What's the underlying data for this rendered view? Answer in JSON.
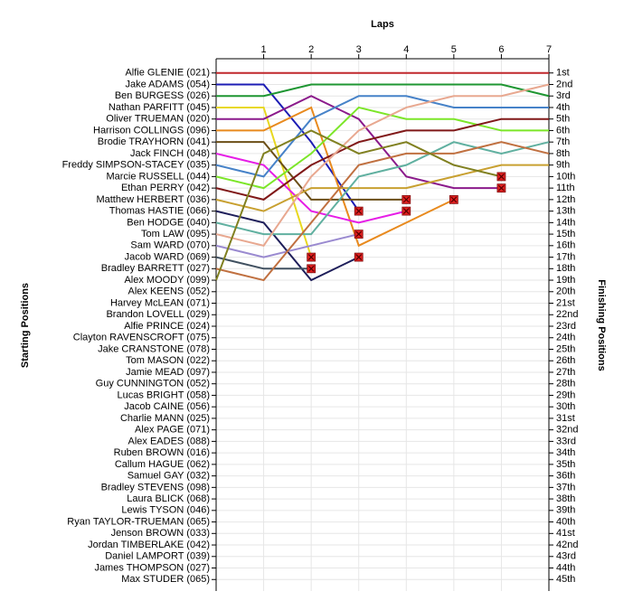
{
  "chart_data": {
    "type": "line",
    "x_label": "Laps",
    "y_label": "Starting Positions",
    "y2_label": "Finishing Positions",
    "x": [
      0,
      1,
      2,
      3,
      4,
      5,
      6,
      7
    ],
    "xlim": [
      0,
      7
    ],
    "xticks": [
      1,
      2,
      3,
      4,
      5,
      6,
      7
    ],
    "ylim": [
      46,
      0
    ],
    "y2lim": [
      46,
      0
    ],
    "grid": true,
    "yticks": [
      {
        "value": 1,
        "label": "Alfie GLENIE (021)"
      },
      {
        "value": 2,
        "label": "Jake ADAMS (054)"
      },
      {
        "value": 3,
        "label": "Ben BURGESS (026)"
      },
      {
        "value": 4,
        "label": "Nathan PARFITT (045)"
      },
      {
        "value": 5,
        "label": "Oliver TRUEMAN (020)"
      },
      {
        "value": 6,
        "label": "Harrison COLLINGS (096)"
      },
      {
        "value": 7,
        "label": "Brodie TRAYHORN (041)"
      },
      {
        "value": 8,
        "label": "Jack FINCH (048)"
      },
      {
        "value": 9,
        "label": "Freddy SIMPSON-STACEY (035)"
      },
      {
        "value": 10,
        "label": "Marcie RUSSELL (044)"
      },
      {
        "value": 11,
        "label": "Ethan PERRY (042)"
      },
      {
        "value": 12,
        "label": "Matthew HERBERT (036)"
      },
      {
        "value": 13,
        "label": "Thomas HASTIE (066)"
      },
      {
        "value": 14,
        "label": "Ben HODGE (040)"
      },
      {
        "value": 15,
        "label": "Tom LAW (095)"
      },
      {
        "value": 16,
        "label": "Sam WARD (070)"
      },
      {
        "value": 17,
        "label": "Jacob WARD (069)"
      },
      {
        "value": 18,
        "label": "Bradley BARRETT (027)"
      },
      {
        "value": 19,
        "label": "Alex MOODY (099)"
      },
      {
        "value": 20,
        "label": "Alex KEENS (052)"
      },
      {
        "value": 21,
        "label": "Harvey McLEAN (071)"
      },
      {
        "value": 22,
        "label": "Brandon LOVELL (029)"
      },
      {
        "value": 23,
        "label": "Alfie PRINCE (024)"
      },
      {
        "value": 24,
        "label": "Clayton RAVENSCROFT (075)"
      },
      {
        "value": 25,
        "label": "Jake CRANSTONE (078)"
      },
      {
        "value": 26,
        "label": "Tom MASON (022)"
      },
      {
        "value": 27,
        "label": "Jamie MEAD (097)"
      },
      {
        "value": 28,
        "label": "Guy CUNNINGTON (052)"
      },
      {
        "value": 29,
        "label": "Lucas BRIGHT (058)"
      },
      {
        "value": 30,
        "label": "Jacob CAINE (056)"
      },
      {
        "value": 31,
        "label": "Charlie MANN (025)"
      },
      {
        "value": 32,
        "label": "Alex PAGE (071)"
      },
      {
        "value": 33,
        "label": "Alex EADES (088)"
      },
      {
        "value": 34,
        "label": "Ruben BROWN (016)"
      },
      {
        "value": 35,
        "label": "Callum HAGUE (062)"
      },
      {
        "value": 36,
        "label": "Samuel GAY (032)"
      },
      {
        "value": 37,
        "label": "Bradley STEVENS (098)"
      },
      {
        "value": 38,
        "label": "Laura BLICK (068)"
      },
      {
        "value": 39,
        "label": "Lewis TYSON (046)"
      },
      {
        "value": 40,
        "label": "Ryan TAYLOR-TRUEMAN (065)"
      },
      {
        "value": 41,
        "label": "Jenson BROWN (033)"
      },
      {
        "value": 42,
        "label": "Jordan TIMBERLAKE (042)"
      },
      {
        "value": 43,
        "label": "Daniel LAMPORT (039)"
      },
      {
        "value": 44,
        "label": "James THOMPSON (027)"
      },
      {
        "value": 45,
        "label": "Max STUDER (065)"
      }
    ],
    "y2ticks": [
      {
        "value": 1,
        "label": "1st"
      },
      {
        "value": 2,
        "label": "2nd"
      },
      {
        "value": 3,
        "label": "3rd"
      },
      {
        "value": 4,
        "label": "4th"
      },
      {
        "value": 5,
        "label": "5th"
      },
      {
        "value": 6,
        "label": "6th"
      },
      {
        "value": 7,
        "label": "7th"
      },
      {
        "value": 8,
        "label": "8th"
      },
      {
        "value": 9,
        "label": "9th"
      },
      {
        "value": 10,
        "label": "10th"
      },
      {
        "value": 11,
        "label": "11th"
      },
      {
        "value": 12,
        "label": "12th"
      },
      {
        "value": 13,
        "label": "13th"
      },
      {
        "value": 14,
        "label": "14th"
      },
      {
        "value": 15,
        "label": "15th"
      },
      {
        "value": 16,
        "label": "16th"
      },
      {
        "value": 17,
        "label": "17th"
      },
      {
        "value": 18,
        "label": "18th"
      },
      {
        "value": 19,
        "label": "19th"
      },
      {
        "value": 20,
        "label": "20th"
      },
      {
        "value": 21,
        "label": "21st"
      },
      {
        "value": 22,
        "label": "22nd"
      },
      {
        "value": 23,
        "label": "23rd"
      },
      {
        "value": 24,
        "label": "24th"
      },
      {
        "value": 25,
        "label": "25th"
      },
      {
        "value": 26,
        "label": "26th"
      },
      {
        "value": 27,
        "label": "27th"
      },
      {
        "value": 28,
        "label": "28th"
      },
      {
        "value": 29,
        "label": "29th"
      },
      {
        "value": 30,
        "label": "30th"
      },
      {
        "value": 31,
        "label": "31st"
      },
      {
        "value": 32,
        "label": "32nd"
      },
      {
        "value": 33,
        "label": "33rd"
      },
      {
        "value": 34,
        "label": "34th"
      },
      {
        "value": 35,
        "label": "35th"
      },
      {
        "value": 36,
        "label": "36th"
      },
      {
        "value": 37,
        "label": "37th"
      },
      {
        "value": 38,
        "label": "38th"
      },
      {
        "value": 39,
        "label": "39th"
      },
      {
        "value": 40,
        "label": "40th"
      },
      {
        "value": 41,
        "label": "41st"
      },
      {
        "value": 42,
        "label": "42nd"
      },
      {
        "value": 43,
        "label": "43rd"
      },
      {
        "value": 44,
        "label": "44th"
      },
      {
        "value": 45,
        "label": "45th"
      }
    ],
    "series": [
      {
        "color": "#c0282d",
        "values": [
          1,
          1,
          1,
          1,
          1,
          1,
          1,
          1
        ]
      },
      {
        "color": "#1c1cb4",
        "values": [
          2,
          2,
          7,
          13,
          null,
          null,
          null,
          null
        ]
      },
      {
        "color": "#1e9632",
        "values": [
          3,
          3,
          2,
          2,
          2,
          2,
          2,
          3
        ]
      },
      {
        "color": "#e8d820",
        "values": [
          4,
          4,
          17,
          null,
          null,
          null,
          null,
          null
        ]
      },
      {
        "color": "#8b1a8b",
        "values": [
          5,
          5,
          3,
          5,
          10,
          11,
          11,
          null
        ]
      },
      {
        "color": "#e88a1e",
        "values": [
          6,
          6,
          4,
          16,
          14,
          12,
          null,
          null
        ]
      },
      {
        "color": "#6b4e16",
        "values": [
          7,
          7,
          12,
          12,
          12,
          null,
          null,
          null
        ]
      },
      {
        "color": "#e61ee6",
        "values": [
          8,
          9,
          13,
          14,
          13,
          null,
          null,
          null
        ]
      },
      {
        "color": "#4682c8",
        "values": [
          9,
          10,
          5,
          3,
          3,
          4,
          4,
          4
        ]
      },
      {
        "color": "#7ce628",
        "values": [
          10,
          11,
          8,
          4,
          5,
          5,
          6,
          6
        ]
      },
      {
        "color": "#801818",
        "values": [
          11,
          12,
          9,
          7,
          6,
          6,
          5,
          5
        ]
      },
      {
        "color": "#c8a030",
        "values": [
          12,
          13,
          11,
          11,
          11,
          10,
          9,
          9
        ]
      },
      {
        "color": "#1e1e5a",
        "values": [
          13,
          14,
          19,
          17,
          null,
          null,
          null,
          null
        ]
      },
      {
        "color": "#60b0a0",
        "values": [
          14,
          15,
          15,
          10,
          9,
          7,
          8,
          7
        ]
      },
      {
        "color": "#e8a890",
        "values": [
          15,
          16,
          10,
          6,
          4,
          3,
          3,
          2
        ]
      },
      {
        "color": "#9a8ad0",
        "values": [
          16,
          17,
          16,
          15,
          null,
          null,
          null,
          null
        ]
      },
      {
        "color": "#405060",
        "values": [
          17,
          18,
          18,
          null,
          null,
          null,
          null,
          null
        ]
      },
      {
        "color": "#c07040",
        "values": [
          18,
          19,
          14,
          9,
          8,
          8,
          7,
          8
        ]
      },
      {
        "color": "#808020",
        "values": [
          19,
          8,
          6,
          8,
          7,
          9,
          10,
          null
        ]
      }
    ]
  }
}
